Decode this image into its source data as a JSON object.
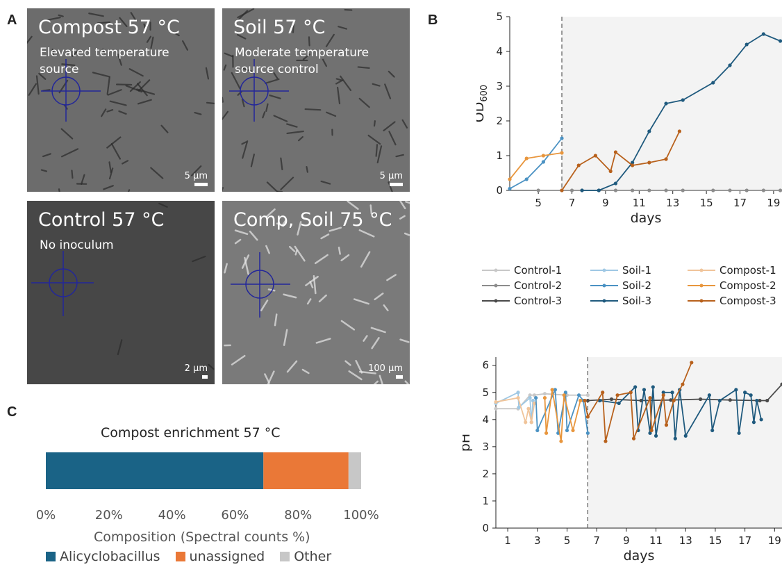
{
  "panel_labels": {
    "a": "A",
    "b": "B",
    "c": "C"
  },
  "micrographs": [
    {
      "title": "Compost 57 °C",
      "subtitle": "Elevated temperature\nsource",
      "scale_label": "5 µm",
      "scale_frac": 0.07
    },
    {
      "title": "Soil 57 °C",
      "subtitle": "Moderate temperature\nsource control",
      "scale_label": "5 µm",
      "scale_frac": 0.07
    },
    {
      "title": "Control 57 °C",
      "subtitle": "No inoculum",
      "scale_label": "2 µm",
      "scale_frac": 0.03
    },
    {
      "title": "Comp, Soil 75 °C",
      "subtitle": "",
      "scale_label": "100 µm",
      "scale_frac": 0.04
    }
  ],
  "colors": {
    "control1": "#c8c8c8",
    "control2": "#8c8c8c",
    "control3": "#4a4a4a",
    "soil1": "#9fc8e4",
    "soil2": "#4b92c3",
    "soil3": "#1f5a7e",
    "compost1": "#f0c49a",
    "compost2": "#e8963d",
    "compost3": "#b8611c",
    "shade": "#f3f3f3",
    "alicyclobacillus": "#1a6386",
    "unassigned": "#ea7837",
    "other": "#c7c7c7"
  },
  "legend": {
    "control1": "Control-1",
    "control2": "Control-2",
    "control3": "Control-3",
    "soil1": "Soil-1",
    "soil2": "Soil-2",
    "soil3": "Soil-3",
    "compost1": "Compost-1",
    "compost2": "Compost-2",
    "compost3": "Compost-3"
  },
  "chart_data": [
    {
      "type": "line",
      "panel": "B-top",
      "xlabel": "days",
      "ylabel": "OD",
      "ylabel_sub": "600",
      "xlim": [
        3.3,
        19.5
      ],
      "ylim": [
        0,
        5
      ],
      "xticks": [
        5,
        7,
        9,
        11,
        13,
        15,
        17,
        19
      ],
      "yticks": [
        0,
        1,
        2,
        3,
        4,
        5
      ],
      "transfer_day": 6.4,
      "shaded_from": 6.4,
      "series": [
        {
          "name": "Control-2",
          "color_key": "control2",
          "x": [
            5,
            6.4,
            7,
            7.6,
            8.6,
            9.6,
            10.6,
            11.6,
            12.6,
            13.6,
            15.4,
            16.4,
            17.4,
            18.4,
            19.4
          ],
          "y": [
            0,
            0,
            0,
            0,
            0,
            0,
            0,
            0,
            0,
            0,
            0,
            0,
            0,
            0,
            0
          ]
        },
        {
          "name": "Soil-2",
          "color_key": "soil2",
          "x": [
            3.3,
            4.3,
            5.3,
            6.4
          ],
          "y": [
            0.05,
            0.32,
            0.82,
            1.5
          ]
        },
        {
          "name": "Soil-3",
          "color_key": "soil3",
          "x": [
            7.6,
            8.6,
            9.6,
            10.6,
            11.6,
            12.6,
            13.6,
            15.4,
            16.4,
            17.4,
            18.4,
            19.4
          ],
          "y": [
            0,
            0,
            0.2,
            0.8,
            1.7,
            2.5,
            2.6,
            3.1,
            3.6,
            4.2,
            4.5,
            4.3
          ]
        },
        {
          "name": "Compost-2",
          "color_key": "compost2",
          "x": [
            3.3,
            4.3,
            5.3,
            6.4
          ],
          "y": [
            0.32,
            0.92,
            1.0,
            1.08
          ]
        },
        {
          "name": "Compost-3",
          "color_key": "compost3",
          "x": [
            6.4,
            7.4,
            8.4,
            9.3,
            9.6,
            10.6,
            11.6,
            12.6,
            13.4
          ],
          "y": [
            0,
            0.72,
            1.0,
            0.55,
            1.1,
            0.72,
            0.8,
            0.9,
            1.7
          ]
        }
      ]
    },
    {
      "type": "line",
      "panel": "B-bottom",
      "xlabel": "days",
      "ylabel": "pH",
      "xlim": [
        0.2,
        19.5
      ],
      "ylim": [
        0,
        6.3
      ],
      "xticks": [
        1,
        3,
        5,
        7,
        9,
        11,
        13,
        15,
        17,
        19
      ],
      "yticks": [
        0,
        1,
        2,
        3,
        4,
        5,
        6
      ],
      "transfer_day": 6.4,
      "shaded_from": 6.4,
      "series": [
        {
          "name": "Control-1",
          "color_key": "control1",
          "x": [
            0.2,
            1.7,
            2.5,
            2.8,
            3.5,
            5,
            6.4
          ],
          "y": [
            4.4,
            4.4,
            4.9,
            4.9,
            4.95,
            4.9,
            4.9
          ]
        },
        {
          "name": "Soil-1",
          "color_key": "soil1",
          "x": [
            0.2,
            1.7,
            1.75,
            2.5,
            2.6,
            2.7
          ],
          "y": [
            4.6,
            5.0,
            4.45,
            4.8,
            3.9,
            4.7
          ]
        },
        {
          "name": "Compost-1",
          "color_key": "compost1",
          "x": [
            0.2,
            1.7,
            2.2,
            2.4,
            2.6,
            2.8
          ],
          "y": [
            4.65,
            4.8,
            3.9,
            4.4,
            3.9,
            4.6
          ]
        },
        {
          "name": "Control-3",
          "color_key": "control3",
          "x": [
            6.4,
            8,
            10,
            12,
            14,
            16,
            18,
            18.5,
            19.5
          ],
          "y": [
            4.7,
            4.75,
            4.7,
            4.72,
            4.75,
            4.72,
            4.7,
            4.7,
            5.3
          ]
        },
        {
          "name": "Soil-2",
          "color_key": "soil2",
          "x": [
            2.9,
            3.0,
            4.2,
            4.4,
            4.9,
            5.0,
            5.8,
            6.1,
            6.4
          ],
          "y": [
            4.8,
            3.6,
            5.1,
            3.5,
            5.0,
            3.6,
            4.9,
            4.7,
            3.5
          ]
        },
        {
          "name": "Soil-3",
          "color_key": "soil3",
          "x": [
            7.2,
            8.5,
            9.6,
            9.8,
            10.2,
            10.6,
            10.8,
            11.0,
            11.5,
            12.1,
            12.3,
            12.6,
            13.0,
            14.6,
            14.8,
            15.3,
            16.4,
            16.6,
            17.0,
            17.4,
            17.6,
            17.8,
            18.1
          ],
          "y": [
            4.7,
            4.6,
            5.2,
            3.6,
            5.1,
            3.5,
            5.2,
            3.4,
            5.0,
            5.0,
            3.3,
            5.1,
            3.4,
            4.9,
            3.6,
            4.7,
            5.1,
            3.5,
            5.0,
            4.9,
            3.9,
            4.7,
            4.0
          ]
        },
        {
          "name": "Compost-2",
          "color_key": "compost2",
          "x": [
            3.5,
            3.6,
            4.0,
            4.6,
            4.8,
            5.4,
            5.9
          ],
          "y": [
            4.8,
            3.5,
            5.1,
            3.2,
            4.9,
            3.6,
            4.7
          ]
        },
        {
          "name": "Compost-3",
          "color_key": "compost3",
          "x": [
            6.2,
            6.4,
            7.4,
            7.6,
            8.4,
            9.3,
            9.5,
            10.6,
            10.7,
            11.5,
            11.7,
            12.2,
            12.8,
            13.4
          ],
          "y": [
            4.7,
            4.1,
            5.0,
            3.2,
            4.9,
            5.0,
            3.3,
            4.8,
            3.6,
            4.9,
            3.8,
            4.7,
            5.3,
            6.1
          ]
        }
      ]
    },
    {
      "type": "bar",
      "panel": "C",
      "orientation": "horizontal-stacked",
      "title": "Compost enrichment 57 °C",
      "xlabel": "Composition (Spectral counts %)",
      "xlim": [
        0,
        100
      ],
      "xticks": [
        0,
        20,
        40,
        60,
        80,
        100
      ],
      "xtick_labels": [
        "0%",
        "20%",
        "40%",
        "60%",
        "80%",
        "100%"
      ],
      "series": [
        {
          "name": "Alicyclobacillus",
          "color_key": "alicyclobacillus",
          "values": [
            69
          ]
        },
        {
          "name": "unassigned",
          "color_key": "unassigned",
          "values": [
            27
          ]
        },
        {
          "name": "Other",
          "color_key": "other",
          "values": [
            4
          ]
        }
      ]
    }
  ]
}
